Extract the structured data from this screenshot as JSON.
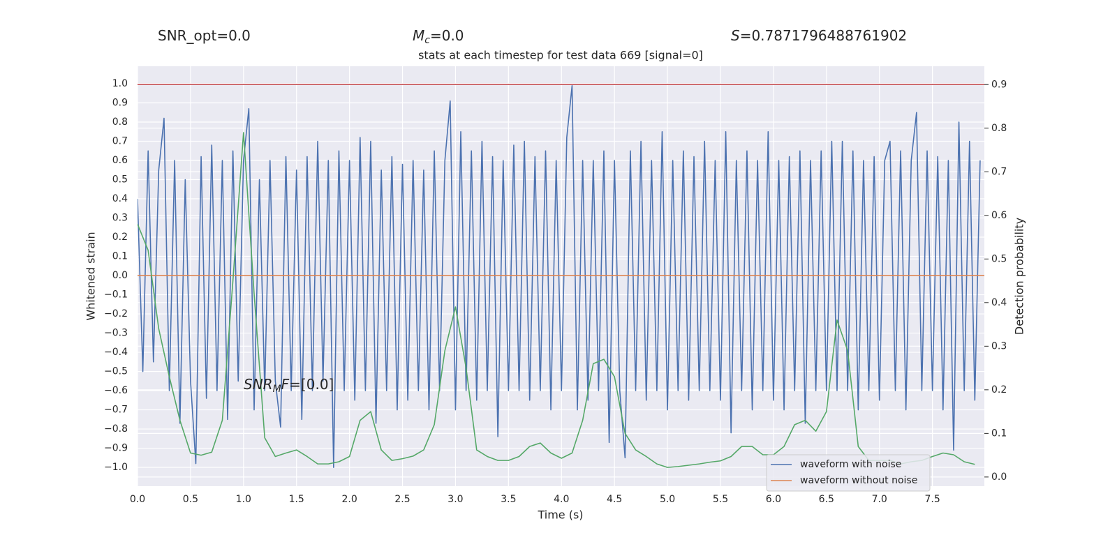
{
  "chart_data": {
    "type": "line",
    "title": "stats at each timestep for test data 669 [signal=0]",
    "xlabel": "Time (s)",
    "ylabel": "Whitened strain",
    "y2label": "Detection probability",
    "annotations": [
      {
        "parts": [
          {
            "text": "SNR_opt=0.0"
          }
        ]
      },
      {
        "parts": [
          {
            "text": "M",
            "style": "italic"
          },
          {
            "text": "c",
            "style": "sub"
          },
          {
            "text": "=0.0"
          }
        ]
      },
      {
        "parts": [
          {
            "text": "S",
            "style": "italic"
          },
          {
            "text": "=0.7871796488761902"
          }
        ]
      },
      {
        "parts": [
          {
            "text": "SNR",
            "style": "italic"
          },
          {
            "text": "M",
            "style": "sub"
          },
          {
            "text": "F",
            "style": "italic"
          },
          {
            "text": "=[0.0]"
          }
        ]
      }
    ],
    "xlim": [
      0,
      7.99
    ],
    "ylim": [
      -1.098,
      1.091
    ],
    "y2lim": [
      -0.021,
      0.942
    ],
    "xticks": [
      {
        "value": 0,
        "label": "0.0"
      },
      {
        "value": 0.5,
        "label": "0.5"
      },
      {
        "value": 1,
        "label": "1.0"
      },
      {
        "value": 1.5,
        "label": "1.5"
      },
      {
        "value": 2,
        "label": "2.0"
      },
      {
        "value": 2.5,
        "label": "2.5"
      },
      {
        "value": 3,
        "label": "3.0"
      },
      {
        "value": 3.5,
        "label": "3.5"
      },
      {
        "value": 4,
        "label": "4.0"
      },
      {
        "value": 4.5,
        "label": "4.5"
      },
      {
        "value": 5,
        "label": "5.0"
      },
      {
        "value": 5.5,
        "label": "5.5"
      },
      {
        "value": 6,
        "label": "6.0"
      },
      {
        "value": 6.5,
        "label": "6.5"
      },
      {
        "value": 7,
        "label": "7.0"
      },
      {
        "value": 7.5,
        "label": "7.5"
      }
    ],
    "yticks": [
      {
        "value": 1,
        "label": "1.0"
      },
      0.9,
      0.8,
      0.7,
      0.6,
      0.5,
      0.4,
      0.3,
      0.2,
      0.1,
      {
        "value": 0,
        "label": "0.0"
      },
      {
        "value": -0.1,
        "label": "−0.1"
      },
      {
        "value": -0.2,
        "label": "−0.2"
      },
      {
        "value": -0.3,
        "label": "−0.3"
      },
      {
        "value": -0.4,
        "label": "−0.4"
      },
      {
        "value": -0.5,
        "label": "−0.5"
      },
      {
        "value": -0.6,
        "label": "−0.6"
      },
      {
        "value": -0.7,
        "label": "−0.7"
      },
      {
        "value": -0.8,
        "label": "−0.8"
      },
      {
        "value": -0.9,
        "label": "−0.9"
      },
      {
        "value": -1,
        "label": "−1.0"
      }
    ],
    "y2ticks": [
      {
        "value": 0,
        "label": "0.0"
      },
      0.1,
      0.2,
      0.3,
      0.4,
      0.5,
      0.6,
      0.7,
      0.8,
      0.9
    ],
    "grid": true,
    "legend": "lower right",
    "hline": {
      "value": 0.9,
      "axis": "y2",
      "color": "#c44e52"
    },
    "series": [
      {
        "name": "waveform with noise",
        "color": "#4c72b0",
        "x": [
          0,
          0.05,
          0.1,
          0.15,
          0.2,
          0.25,
          0.3,
          0.35,
          0.4,
          0.45,
          0.5,
          0.55,
          0.6,
          0.65,
          0.7,
          0.75,
          0.8,
          0.85,
          0.9,
          0.95,
          1,
          1.05,
          1.1,
          1.15,
          1.2,
          1.25,
          1.3,
          1.35,
          1.4,
          1.45,
          1.5,
          1.55,
          1.6,
          1.65,
          1.7,
          1.75,
          1.8,
          1.85,
          1.9,
          1.95,
          2,
          2.05,
          2.1,
          2.15,
          2.2,
          2.25,
          2.3,
          2.35,
          2.4,
          2.45,
          2.5,
          2.55,
          2.6,
          2.65,
          2.7,
          2.75,
          2.8,
          2.85,
          2.9,
          2.95,
          3,
          3.05,
          3.1,
          3.15,
          3.2,
          3.25,
          3.3,
          3.35,
          3.4,
          3.45,
          3.5,
          3.55,
          3.6,
          3.65,
          3.7,
          3.75,
          3.8,
          3.85,
          3.9,
          3.95,
          4,
          4.05,
          4.1,
          4.15,
          4.2,
          4.25,
          4.3,
          4.35,
          4.4,
          4.45,
          4.5,
          4.55,
          4.6,
          4.65,
          4.7,
          4.75,
          4.8,
          4.85,
          4.9,
          4.95,
          5,
          5.05,
          5.1,
          5.15,
          5.2,
          5.25,
          5.3,
          5.35,
          5.4,
          5.45,
          5.5,
          5.55,
          5.6,
          5.65,
          5.7,
          5.75,
          5.8,
          5.85,
          5.9,
          5.95,
          6,
          6.05,
          6.1,
          6.15,
          6.2,
          6.25,
          6.3,
          6.35,
          6.4,
          6.45,
          6.5,
          6.55,
          6.6,
          6.65,
          6.7,
          6.75,
          6.8,
          6.85,
          6.9,
          6.95,
          7,
          7.05,
          7.1,
          7.15,
          7.2,
          7.25,
          7.3,
          7.35,
          7.4,
          7.45,
          7.5,
          7.55,
          7.6,
          7.65,
          7.7,
          7.75,
          7.8,
          7.85,
          7.9,
          7.95
        ],
        "values": [
          0.4,
          -0.5,
          0.65,
          -0.45,
          0.55,
          0.82,
          -0.6,
          0.6,
          -0.77,
          0.5,
          -0.55,
          -0.98,
          0.62,
          -0.64,
          0.68,
          -0.6,
          0.6,
          -0.75,
          0.65,
          -0.55,
          0.6,
          0.87,
          -0.7,
          0.5,
          -0.6,
          0.6,
          -0.55,
          -0.79,
          0.62,
          -0.6,
          0.55,
          -0.75,
          0.62,
          -0.6,
          0.7,
          -0.55,
          0.6,
          -1.0,
          0.65,
          -0.6,
          0.6,
          -0.65,
          0.72,
          -0.6,
          0.7,
          -0.77,
          0.55,
          -0.6,
          0.62,
          -0.7,
          0.58,
          -0.65,
          0.6,
          -0.6,
          0.55,
          -0.7,
          0.65,
          -0.6,
          0.6,
          0.91,
          -0.7,
          0.75,
          -0.6,
          0.65,
          -0.65,
          0.7,
          -0.6,
          0.62,
          -0.84,
          0.6,
          -0.6,
          0.68,
          -0.6,
          0.7,
          -0.65,
          0.62,
          -0.6,
          0.65,
          -0.7,
          0.6,
          -0.6,
          0.72,
          0.99,
          -0.7,
          0.6,
          -0.65,
          0.6,
          -0.6,
          0.65,
          -0.87,
          0.6,
          -0.6,
          -0.95,
          0.65,
          -0.6,
          0.7,
          -0.65,
          0.6,
          -0.6,
          0.75,
          -0.7,
          0.6,
          -0.6,
          0.65,
          -0.65,
          0.62,
          -0.6,
          0.7,
          -0.6,
          0.6,
          -0.65,
          0.75,
          -0.82,
          0.6,
          -0.6,
          0.65,
          -0.7,
          0.6,
          -0.6,
          0.75,
          -0.65,
          0.6,
          -0.7,
          0.62,
          -0.6,
          0.65,
          -0.77,
          0.6,
          -0.6,
          0.65,
          -0.6,
          0.7,
          -0.6,
          0.7,
          -0.6,
          0.65,
          -0.7,
          0.6,
          -0.6,
          0.62,
          -0.65,
          0.6,
          0.7,
          -0.6,
          0.65,
          -0.7,
          0.6,
          0.85,
          -0.6,
          0.65,
          -0.6,
          0.62,
          -0.7,
          0.6,
          -0.91,
          0.8,
          -0.6,
          0.7,
          -0.65,
          0.6
        ]
      },
      {
        "name": "waveform without noise",
        "color": "#dd8452",
        "x": [
          0,
          7.99
        ],
        "values": [
          0,
          0
        ]
      },
      {
        "color": "#55a868",
        "axis": "y2",
        "x": [
          0,
          0.1,
          0.2,
          0.3,
          0.4,
          0.5,
          0.6,
          0.7,
          0.8,
          0.9,
          1,
          1.1,
          1.2,
          1.3,
          1.4,
          1.5,
          1.6,
          1.7,
          1.8,
          1.9,
          2,
          2.1,
          2.2,
          2.3,
          2.4,
          2.5,
          2.6,
          2.7,
          2.8,
          2.9,
          3,
          3.1,
          3.2,
          3.3,
          3.4,
          3.5,
          3.6,
          3.7,
          3.8,
          3.9,
          4,
          4.1,
          4.2,
          4.3,
          4.4,
          4.5,
          4.6,
          4.7,
          4.8,
          4.9,
          5,
          5.1,
          5.2,
          5.3,
          5.4,
          5.5,
          5.6,
          5.7,
          5.8,
          5.9,
          6,
          6.1,
          6.2,
          6.3,
          6.4,
          6.5,
          6.6,
          6.7,
          6.8,
          6.9,
          7,
          7.1,
          7.2,
          7.3,
          7.4,
          7.5,
          7.6,
          7.7,
          7.8,
          7.9
        ],
        "values": [
          0.58,
          0.52,
          0.34,
          0.23,
          0.13,
          0.055,
          0.05,
          0.057,
          0.13,
          0.45,
          0.79,
          0.42,
          0.09,
          0.047,
          0.055,
          0.062,
          0.047,
          0.03,
          0.03,
          0.035,
          0.047,
          0.13,
          0.15,
          0.062,
          0.038,
          0.042,
          0.048,
          0.062,
          0.12,
          0.29,
          0.39,
          0.25,
          0.062,
          0.047,
          0.038,
          0.038,
          0.047,
          0.07,
          0.078,
          0.055,
          0.043,
          0.055,
          0.13,
          0.26,
          0.27,
          0.23,
          0.1,
          0.062,
          0.047,
          0.03,
          0.022,
          0.024,
          0.027,
          0.03,
          0.034,
          0.037,
          0.047,
          0.07,
          0.07,
          0.051,
          0.051,
          0.07,
          0.12,
          0.13,
          0.105,
          0.15,
          0.36,
          0.29,
          0.07,
          0.038,
          0.038,
          0.038,
          0.03,
          0.035,
          0.038,
          0.047,
          0.055,
          0.051,
          0.035,
          0.029
        ]
      }
    ]
  }
}
